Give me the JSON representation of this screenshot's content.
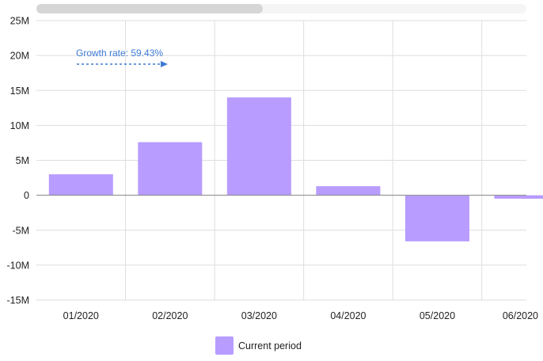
{
  "chart_data": {
    "type": "bar",
    "categories": [
      "01/2020",
      "02/2020",
      "03/2020",
      "04/2020",
      "05/2020",
      "06/2020"
    ],
    "series": [
      {
        "name": "Current period",
        "values": [
          3000000,
          7600000,
          14000000,
          1300000,
          -6600000,
          -500000
        ]
      }
    ],
    "yticks": [
      "25M",
      "20M",
      "15M",
      "10M",
      "5M",
      "0",
      "-5M",
      "-10M",
      "-15M"
    ],
    "ylim": [
      -15000000,
      25000000
    ],
    "grid": true,
    "legend": "bottom-center",
    "annotation": "Growth rate: 59.43%",
    "bar_color": "#b89cff",
    "annotation_color": "#3d7ad6",
    "scrollbar_position": 0.46
  }
}
